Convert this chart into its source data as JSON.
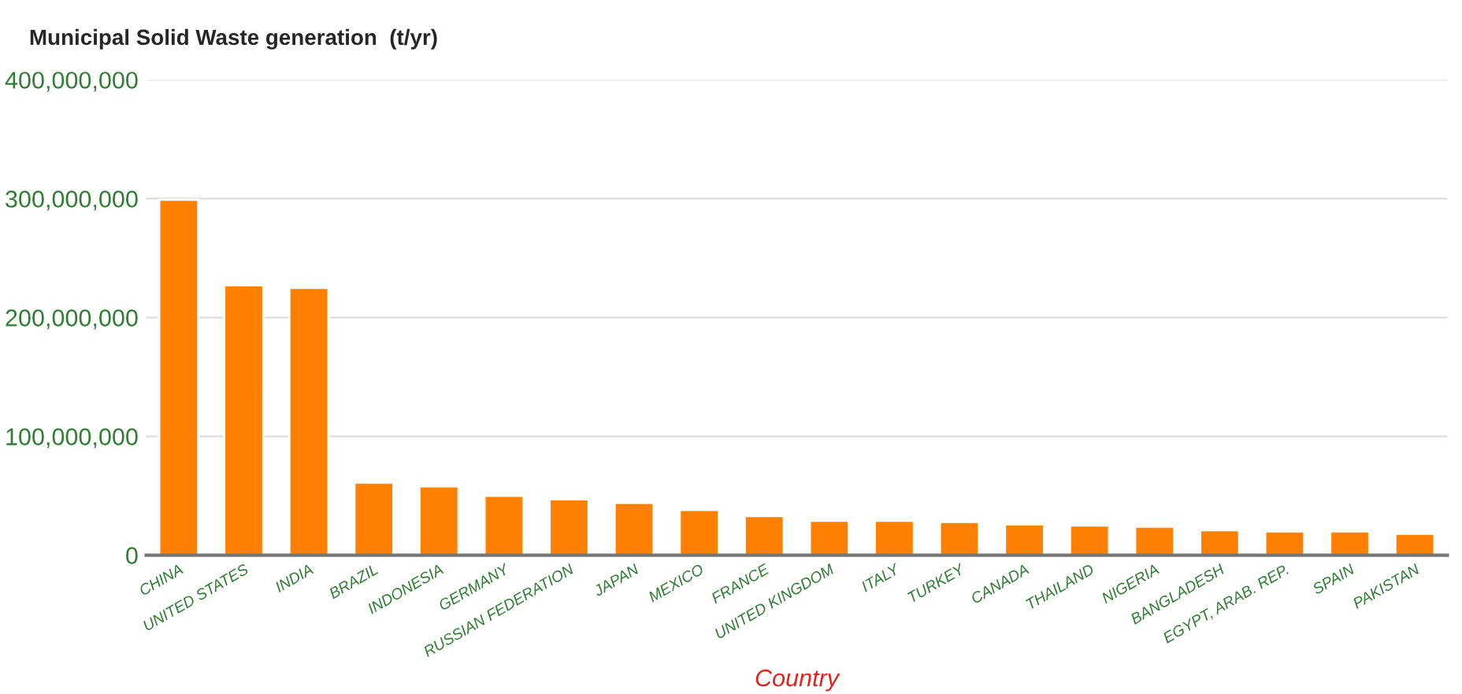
{
  "chart_data": {
    "type": "bar",
    "title": "Municipal Solid Waste generation  (t/yr)",
    "xlabel": "Country",
    "categories": [
      "CHINA",
      "UNITED STATES",
      "INDIA",
      "BRAZIL",
      "INDONESIA",
      "GERMANY",
      "RUSSIAN FEDERATION",
      "JAPAN",
      "MEXICO",
      "FRANCE",
      "UNITED KINGDOM",
      "ITALY",
      "TURKEY",
      "CANADA",
      "THAILAND",
      "NIGERIA",
      "BANGLADESH",
      "EGYPT, ARAB. REP.",
      "SPAIN",
      "PAKISTAN"
    ],
    "values": [
      299000000,
      227000000,
      225000000,
      61000000,
      58000000,
      50000000,
      47000000,
      44000000,
      38000000,
      33000000,
      29000000,
      29000000,
      28000000,
      26000000,
      25000000,
      24000000,
      21000000,
      20000000,
      20000000,
      18000000
    ],
    "color": "#ff7f00",
    "ylim": [
      0,
      400000000
    ],
    "yticks": [
      {
        "value": 0,
        "label": "0"
      },
      {
        "value": 100000000,
        "label": "100,000,000"
      },
      {
        "value": 200000000,
        "label": "200,000,000"
      },
      {
        "value": 300000000,
        "label": "300,000,000"
      },
      {
        "value": 400000000,
        "label": "400,000,000"
      }
    ],
    "grid": "y",
    "legend": false
  }
}
